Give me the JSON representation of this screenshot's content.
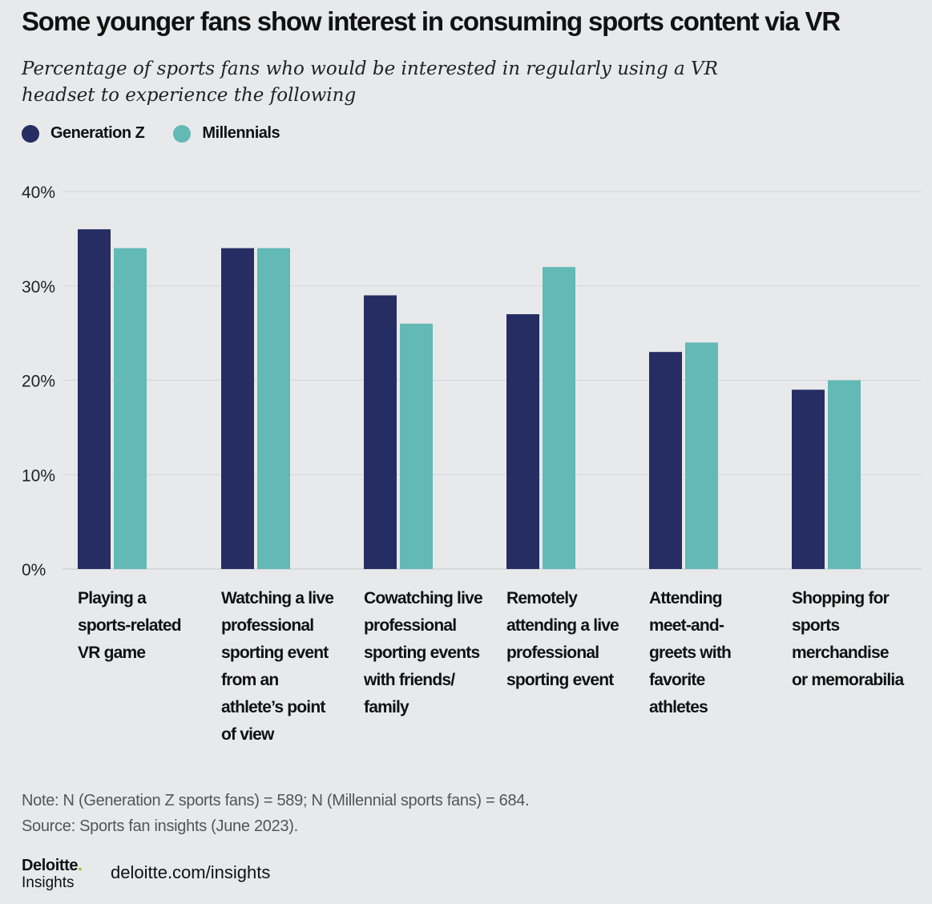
{
  "title": "Some younger fans show interest in consuming sports content via VR",
  "subtitle": "Percentage of sports fans who would be interested in regularly using a VR headset to experience the following",
  "legend": [
    {
      "name": "Generation Z",
      "color": "#252d63"
    },
    {
      "name": "Millennials",
      "color": "#62b9b5"
    }
  ],
  "chart_data": {
    "type": "bar",
    "categories": [
      "Playing a sports-related VR game",
      "Watching a live professional sporting event from an athlete’s point of view",
      "Cowatching live professional sporting events with friends/ family",
      "Remotely attending a live professional sporting event",
      "Attending meet-and-greets with favorite athletes",
      "Shopping for sports merchandise or memorabilia"
    ],
    "category_lines": [
      [
        "Playing a",
        "sports-related",
        "VR game"
      ],
      [
        "Watching a live",
        "professional",
        "sporting event",
        "from an",
        "athlete’s point",
        "of view"
      ],
      [
        "Cowatching live",
        "professional",
        "sporting events",
        "with friends/",
        "family"
      ],
      [
        "Remotely",
        "attending a live",
        "professional",
        "sporting event"
      ],
      [
        "Attending",
        "meet-and-",
        "greets with",
        "favorite",
        "athletes"
      ],
      [
        "Shopping for",
        "sports",
        "merchandise",
        "or memorabilia"
      ]
    ],
    "series": [
      {
        "name": "Generation Z",
        "color": "#252d63",
        "values": [
          36,
          34,
          29,
          27,
          23,
          19
        ]
      },
      {
        "name": "Millennials",
        "color": "#62b9b5",
        "values": [
          34,
          34,
          26,
          32,
          24,
          20
        ]
      }
    ],
    "ylim": [
      0,
      40
    ],
    "yticks": [
      "0%",
      "10%",
      "20%",
      "30%",
      "40%"
    ],
    "ytick_values": [
      0,
      10,
      20,
      30,
      40
    ],
    "grid": true,
    "legend_position": "top-left"
  },
  "note": "Note: N (Generation Z sports fans) = 589; N (Millennial sports fans) = 684.",
  "source": "Source: Sports fan insights (June 2023).",
  "brand": {
    "name": "Deloitte",
    "dot": ".",
    "sub": "Insights",
    "url": "deloitte.com/insights"
  }
}
